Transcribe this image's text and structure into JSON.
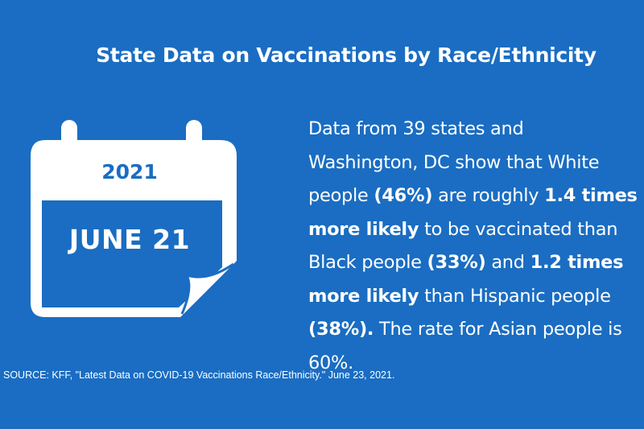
{
  "header": {
    "title": "State Data on Vaccinations by Race/Ethnicity"
  },
  "calendar": {
    "icon": "calendar-icon",
    "year": "2021",
    "date": "JUNE 21"
  },
  "summary": {
    "t1": "Data from 39 states and Washington, DC show that White people ",
    "b1": "(46%)",
    "t2": " are roughly ",
    "b2": "1.4 times more likely",
    "t3": " to be vaccinated than Black people ",
    "b3": "(33%)",
    "t4": " and ",
    "b4": "1.2 times more likely",
    "t5": " than Hispanic people ",
    "b5": "(38%).",
    "t6": " The rate for Asian people is 60%."
  },
  "footer": {
    "source": "SOURCE: KFF, \"Latest Data on COVID-19 Vaccinations Race/Ethnicity.\" June 23, 2021."
  },
  "colors": {
    "background": "#1a6dc2",
    "foreground": "#ffffff"
  }
}
